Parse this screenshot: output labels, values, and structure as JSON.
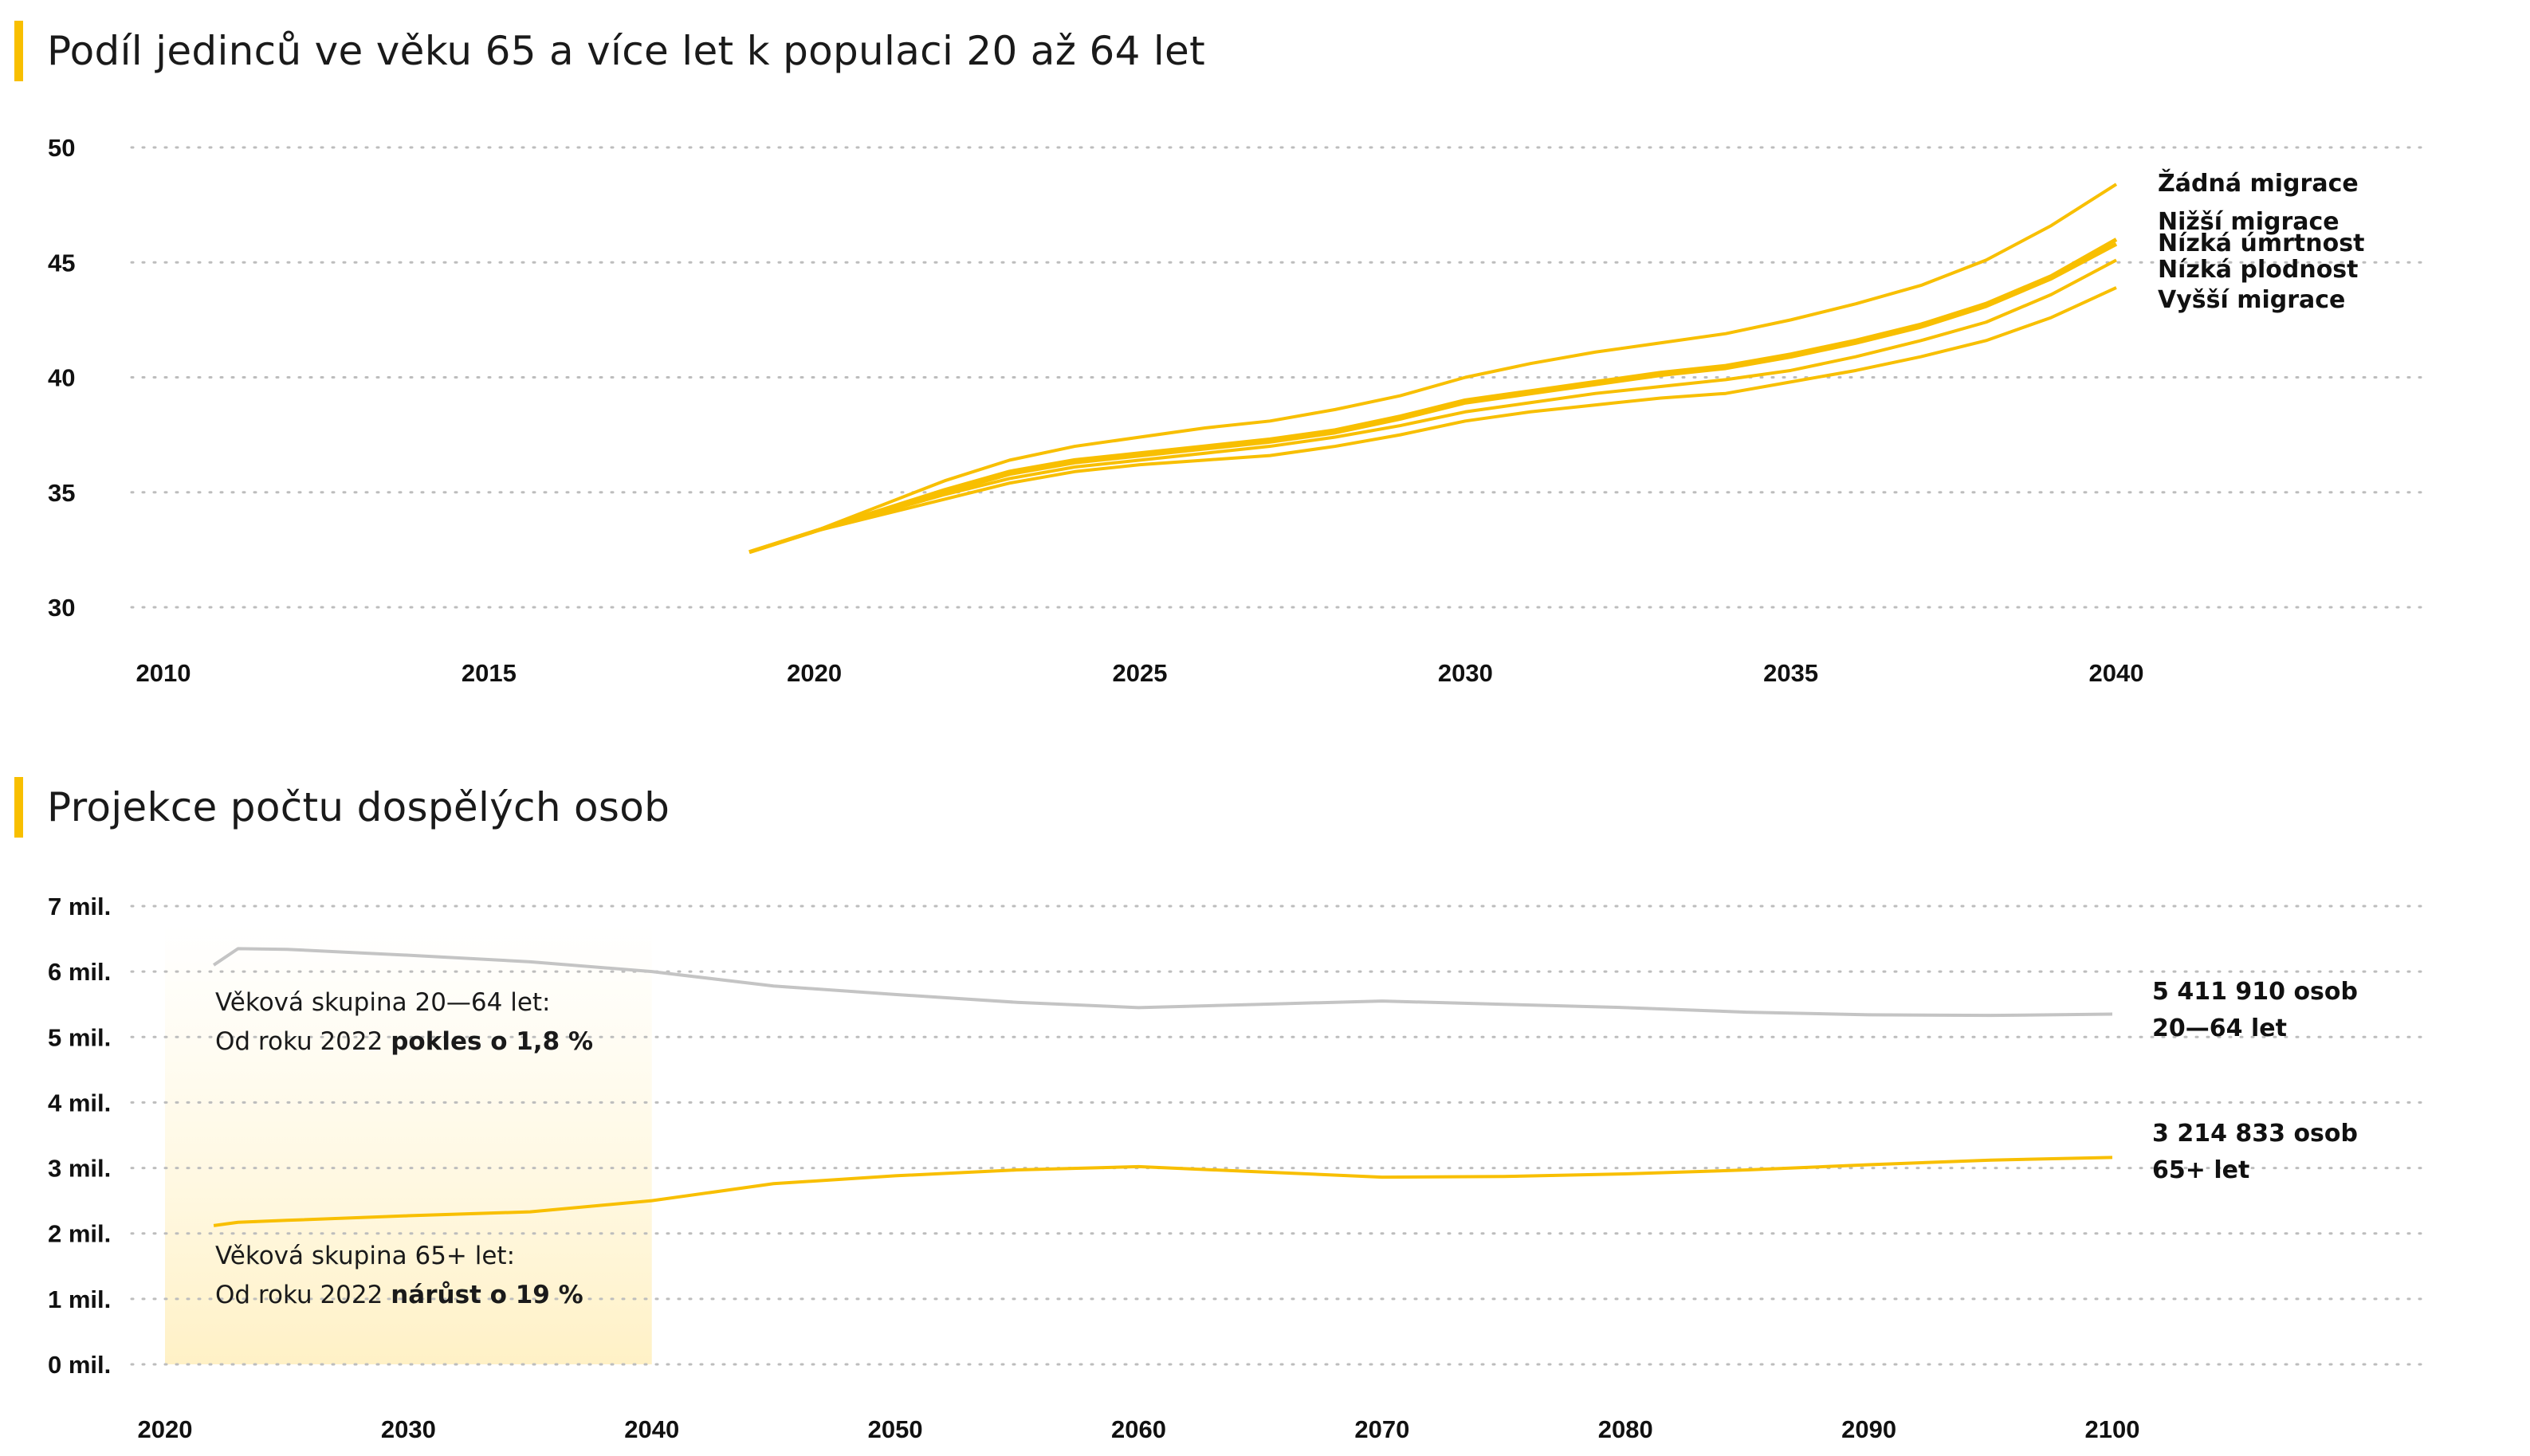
{
  "chart_data": [
    {
      "type": "line",
      "title": "Podíl jedinců ve věku 65 a více let k populaci 20 až 64 let",
      "xlim": [
        2010,
        2040
      ],
      "ylim": [
        30,
        50
      ],
      "x_ticks": [
        "2010",
        "2015",
        "2020",
        "2025",
        "2030",
        "2035",
        "2040"
      ],
      "y_ticks": [
        "30",
        "35",
        "40",
        "45",
        "50"
      ],
      "grid": true,
      "color": "#f8bf00",
      "x": [
        2019,
        2020,
        2021,
        2022,
        2023,
        2024,
        2025,
        2026,
        2027,
        2028,
        2029,
        2030,
        2031,
        2032,
        2033,
        2034,
        2035,
        2036,
        2037,
        2038,
        2039,
        2040
      ],
      "series": [
        {
          "name": "Žádná migrace",
          "values": [
            32.4,
            33.3,
            34.4,
            35.5,
            36.4,
            37.0,
            37.4,
            37.8,
            38.1,
            38.6,
            39.2,
            40.0,
            40.6,
            41.1,
            41.5,
            41.9,
            42.5,
            43.2,
            44.0,
            45.1,
            46.6,
            48.4
          ]
        },
        {
          "name": "Nižší migrace",
          "values": [
            32.4,
            33.3,
            34.2,
            35.1,
            35.9,
            36.4,
            36.7,
            37.0,
            37.3,
            37.7,
            38.3,
            39.0,
            39.4,
            39.8,
            40.2,
            40.5,
            41.0,
            41.6,
            42.3,
            43.2,
            44.4,
            46.0
          ]
        },
        {
          "name": "Nízká úmrtnost",
          "values": [
            32.4,
            33.3,
            34.2,
            35.0,
            35.8,
            36.3,
            36.6,
            36.9,
            37.2,
            37.6,
            38.2,
            38.9,
            39.3,
            39.7,
            40.1,
            40.4,
            40.9,
            41.5,
            42.2,
            43.1,
            44.3,
            45.8
          ]
        },
        {
          "name": "Nízká plodnost",
          "values": [
            32.4,
            33.3,
            34.1,
            34.9,
            35.6,
            36.1,
            36.4,
            36.7,
            37.0,
            37.4,
            37.9,
            38.5,
            38.9,
            39.3,
            39.6,
            39.9,
            40.3,
            40.9,
            41.6,
            42.4,
            43.6,
            45.1
          ]
        },
        {
          "name": "Vyšší migrace",
          "values": [
            32.4,
            33.3,
            34.0,
            34.7,
            35.4,
            35.9,
            36.2,
            36.4,
            36.6,
            37.0,
            37.5,
            38.1,
            38.5,
            38.8,
            39.1,
            39.3,
            39.8,
            40.3,
            40.9,
            41.6,
            42.6,
            43.9
          ]
        }
      ]
    },
    {
      "type": "line",
      "title": "Projekce počtu dospělých osob",
      "xlim": [
        2020,
        2100
      ],
      "ylim": [
        0,
        7
      ],
      "x_ticks": [
        "2020",
        "2030",
        "2040",
        "2050",
        "2060",
        "2070",
        "2080",
        "2090",
        "2100"
      ],
      "y_ticks": [
        "0 mil.",
        "1 mil.",
        "2 mil.",
        "3 mil.",
        "4 mil.",
        "5 mil.",
        "6 mil.",
        "7 mil."
      ],
      "grid": true,
      "highlight_x_range": [
        2020,
        2040
      ],
      "series": [
        {
          "color": "#c4c4c4",
          "label_lines": [
            "5 411 910 osob",
            "20—64 let"
          ],
          "x": [
            2022,
            2023,
            2025,
            2030,
            2035,
            2040,
            2045,
            2050,
            2055,
            2060,
            2065,
            2070,
            2075,
            2080,
            2085,
            2090,
            2095,
            2100
          ],
          "values": [
            6.1,
            6.35,
            6.34,
            6.25,
            6.15,
            6.0,
            5.78,
            5.65,
            5.53,
            5.45,
            5.5,
            5.55,
            5.5,
            5.45,
            5.38,
            5.34,
            5.33,
            5.35
          ]
        },
        {
          "color": "#f8bf00",
          "label_lines": [
            "3 214 833 osob",
            "65+ let"
          ],
          "x": [
            2022,
            2023,
            2025,
            2030,
            2035,
            2040,
            2045,
            2050,
            2055,
            2060,
            2065,
            2070,
            2075,
            2080,
            2085,
            2090,
            2095,
            2100
          ],
          "values": [
            2.12,
            2.17,
            2.2,
            2.27,
            2.33,
            2.5,
            2.76,
            2.88,
            2.97,
            3.02,
            2.94,
            2.86,
            2.87,
            2.91,
            2.97,
            3.05,
            3.12,
            3.16
          ]
        }
      ],
      "annotations": [
        {
          "line1": "Věková skupina 20—64 let:",
          "line2_prefix": "Od roku 2022 ",
          "line2_bold": "pokles o 1,8 %"
        },
        {
          "line1": "Věková skupina 65+ let:",
          "line2_prefix": "Od roku 2022 ",
          "line2_bold": "nárůst o 19 %"
        }
      ]
    }
  ]
}
